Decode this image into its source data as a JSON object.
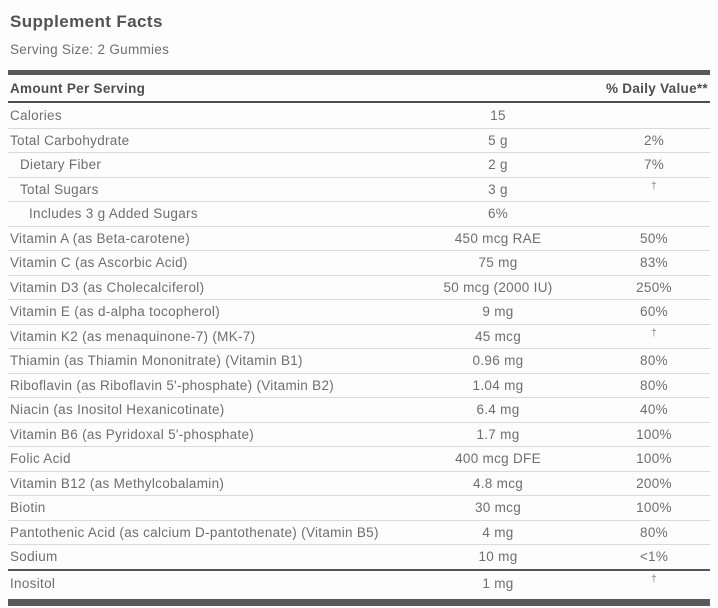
{
  "title": "Supplement Facts",
  "serving_size": "Serving Size: 2 Gummies",
  "table": {
    "header": {
      "amount_label": "Amount Per Serving",
      "dv_label": "% Daily Value**"
    },
    "rows": [
      {
        "name": "Calories",
        "amount": "15",
        "dv": "",
        "indent": 0
      },
      {
        "name": "Total Carbohydrate",
        "amount": "5 g",
        "dv": "2%",
        "indent": 0
      },
      {
        "name": "Dietary Fiber",
        "amount": "2 g",
        "dv": "7%",
        "indent": 1
      },
      {
        "name": "Total Sugars",
        "amount": "3 g",
        "dv": "†",
        "indent": 1
      },
      {
        "name": "Includes 3 g Added Sugars",
        "amount": "6%",
        "dv": "",
        "indent": 2
      },
      {
        "name": "Vitamin A (as Beta-carotene)",
        "amount": "450 mcg RAE",
        "dv": "50%",
        "indent": 0
      },
      {
        "name": "Vitamin C (as Ascorbic Acid)",
        "amount": "75 mg",
        "dv": "83%",
        "indent": 0
      },
      {
        "name": "Vitamin D3 (as Cholecalciferol)",
        "amount": "50 mcg (2000 IU)",
        "dv": "250%",
        "indent": 0
      },
      {
        "name": "Vitamin E (as d-alpha tocopherol)",
        "amount": "9 mg",
        "dv": "60%",
        "indent": 0
      },
      {
        "name": "Vitamin K2 (as menaquinone-7) (MK-7)",
        "amount": "45 mcg",
        "dv": "†",
        "indent": 0
      },
      {
        "name": "Thiamin (as Thiamin Mononitrate) (Vitamin B1)",
        "amount": "0.96 mg",
        "dv": "80%",
        "indent": 0
      },
      {
        "name": "Riboflavin (as Riboflavin 5'-phosphate) (Vitamin B2)",
        "amount": "1.04 mg",
        "dv": "80%",
        "indent": 0
      },
      {
        "name": "Niacin (as Inositol Hexanicotinate)",
        "amount": "6.4 mg",
        "dv": "40%",
        "indent": 0
      },
      {
        "name": "Vitamin B6 (as Pyridoxal 5'-phosphate)",
        "amount": "1.7 mg",
        "dv": "100%",
        "indent": 0
      },
      {
        "name": "Folic Acid",
        "amount": "400 mcg DFE",
        "dv": "100%",
        "indent": 0
      },
      {
        "name": "Vitamin B12 (as Methylcobalamin)",
        "amount": "4.8 mcg",
        "dv": "200%",
        "indent": 0
      },
      {
        "name": "Biotin",
        "amount": "30 mcg",
        "dv": "100%",
        "indent": 0
      },
      {
        "name": "Pantothenic Acid (as calcium D-pantothenate) (Vitamin B5)",
        "amount": "4 mg",
        "dv": "80%",
        "indent": 0
      },
      {
        "name": "Sodium",
        "amount": "10 mg",
        "dv": "<1%",
        "indent": 0
      },
      {
        "name": "Inositol",
        "amount": "1 mg",
        "dv": "†",
        "indent": 0,
        "heavy_top": true
      }
    ]
  },
  "colors": {
    "bar": "#58595b",
    "heading_text": "#4d4e50",
    "body_text": "#6d6e71",
    "light_separator": "#d9dadb",
    "dark_separator": "#55565a",
    "background": "#fdfdfd"
  }
}
